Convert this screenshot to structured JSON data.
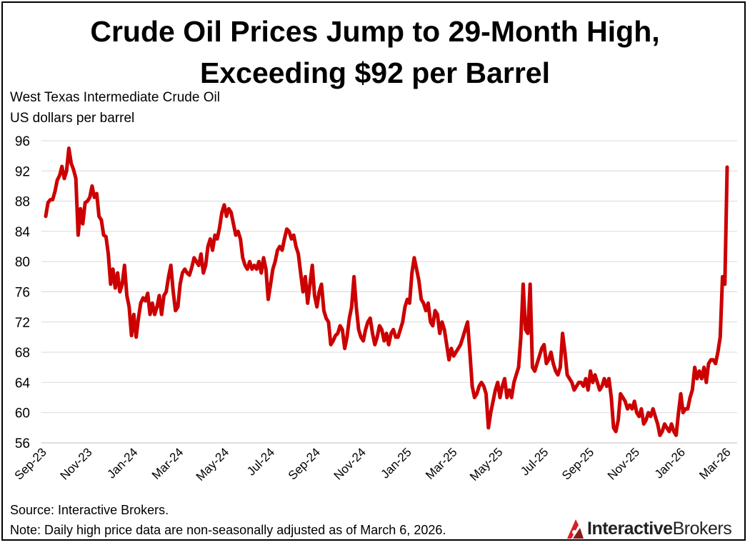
{
  "title_line1": "Crude Oil Prices Jump to 29-Month High,",
  "title_line2": "Exceeding $92 per Barrel",
  "subtitle_line1": "West Texas Intermediate  Crude Oil",
  "subtitle_line2": "US dollars per barrel",
  "source": "Source: Interactive Brokers.",
  "note": "Note: Daily high price data are non-seasonally adjusted as of March 6, 2026.",
  "logo": {
    "part1": "Interactive",
    "part2": "Brokers",
    "icon": "interactive-brokers-logo-icon"
  },
  "colors": {
    "line": "#cc0000",
    "grid": "#d9d9d9",
    "logo_red": "#d81f26"
  },
  "chart_data": {
    "type": "line",
    "title": "Crude Oil Prices Jump to 29-Month High, Exceeding $92 per Barrel",
    "ylabel": "US dollars per barrel",
    "xlabel": "",
    "ylim": [
      56,
      96
    ],
    "yticks": [
      56,
      60,
      64,
      68,
      72,
      76,
      80,
      84,
      88,
      92,
      96
    ],
    "grid": true,
    "legend": "none",
    "x_tick_labels": [
      "Sep-23",
      "Nov-23",
      "Jan-24",
      "Mar-24",
      "May-24",
      "Jul-24",
      "Sep-24",
      "Nov-24",
      "Jan-25",
      "Mar-25",
      "May-25",
      "Jul-25",
      "Sep-25",
      "Nov-25",
      "Jan-26",
      "Mar-26"
    ],
    "series": [
      {
        "values": [
          86,
          87.8,
          88.2,
          88.2,
          89.3,
          90.8,
          91.4,
          92.6,
          91.0,
          92.0,
          95.0,
          93.0,
          92.2,
          91.0,
          83.5,
          87.0,
          85.0,
          87.8,
          88.0,
          88.5,
          90.0,
          88.5,
          89.0,
          86.0,
          85.5,
          83.5,
          83.3,
          81.0,
          77.0,
          79.0,
          76.5,
          78.5,
          76.0,
          77.0,
          79.5,
          75.5,
          74.0,
          70.2,
          73.0,
          70.0,
          72.5,
          74.5,
          75.2,
          74.8,
          75.8,
          73.0,
          74.5,
          73.0,
          74.0,
          75.5,
          73.0,
          75.5,
          76.0,
          78.0,
          79.5,
          76.0,
          73.5,
          74.0,
          77.0,
          78.5,
          79.0,
          78.5,
          78.2,
          79.2,
          80.5,
          80.0,
          79.5,
          81.0,
          78.5,
          79.5,
          82.0,
          83.0,
          81.5,
          83.5,
          83.0,
          84.5,
          86.5,
          87.5,
          86.0,
          87.0,
          86.5,
          85.0,
          83.5,
          84.0,
          83.0,
          80.5,
          79.5,
          79.0,
          80.0,
          79.0,
          79.5,
          79.0,
          80.0,
          78.5,
          80.5,
          79.0,
          75.0,
          77.0,
          79.0,
          80.0,
          81.5,
          82.0,
          81.5,
          83.0,
          84.3,
          84.0,
          83.0,
          83.5,
          82.0,
          81.0,
          78.5,
          76.0,
          78.0,
          74.5,
          77.0,
          79.5,
          75.5,
          74.0,
          76.0,
          77.0,
          73.5,
          72.5,
          72.0,
          69.0,
          69.5,
          70.2,
          70.5,
          71.5,
          71.0,
          68.5,
          70.0,
          72.5,
          74.0,
          78.0,
          74.0,
          71.0,
          70.0,
          69.5,
          71.0,
          72.0,
          72.5,
          70.5,
          69.0,
          70.0,
          71.5,
          71.0,
          69.5,
          70.5,
          69.0,
          70.5,
          71.0,
          70.0,
          70.0,
          71.0,
          72.0,
          74.0,
          75.0,
          74.5,
          78.5,
          80.5,
          79.0,
          77.5,
          75.0,
          74.5,
          73.5,
          74.5,
          72.0,
          71.5,
          73.5,
          73.0,
          70.5,
          72.0,
          71.0,
          69.0,
          67.0,
          68.5,
          67.5,
          68.0,
          68.5,
          69.0,
          70.0,
          71.0,
          72.0,
          68.0,
          63.5,
          62.0,
          62.5,
          63.5,
          64.0,
          63.5,
          62.5,
          58.0,
          60.0,
          61.5,
          63.0,
          64.0,
          62.0,
          63.5,
          64.5,
          62.0,
          63.0,
          62.0,
          64.0,
          65.0,
          66.0,
          70.0,
          77.0,
          71.0,
          70.5,
          77.0,
          66.0,
          65.5,
          66.5,
          67.5,
          68.5,
          69.0,
          66.5,
          67.0,
          68.0,
          66.5,
          65.5,
          65.0,
          66.0,
          70.5,
          68.0,
          65.0,
          64.5,
          64.0,
          63.0,
          63.5,
          64.0,
          64.0,
          63.5,
          64.5,
          63.0,
          65.5,
          64.0,
          65.0,
          64.0,
          63.0,
          63.5,
          64.5,
          63.5,
          64.5,
          62.0,
          58.0,
          57.5,
          59.0,
          62.5,
          62.0,
          61.5,
          60.5,
          61.0,
          60.5,
          61.5,
          60.0,
          59.5,
          60.5,
          58.5,
          59.0,
          60.0,
          59.5,
          60.5,
          59.5,
          58.5,
          57.0,
          57.5,
          58.5,
          58.0,
          57.5,
          58.5,
          57.5,
          57.0,
          60.0,
          62.5,
          60.0,
          60.5,
          60.5,
          62.0,
          63.0,
          66.0,
          64.5,
          65.5,
          64.5,
          66.0,
          64.0,
          66.5,
          67.0,
          67.0,
          66.5,
          68.0,
          70.0,
          78.0,
          77.0,
          92.5
        ]
      }
    ]
  }
}
